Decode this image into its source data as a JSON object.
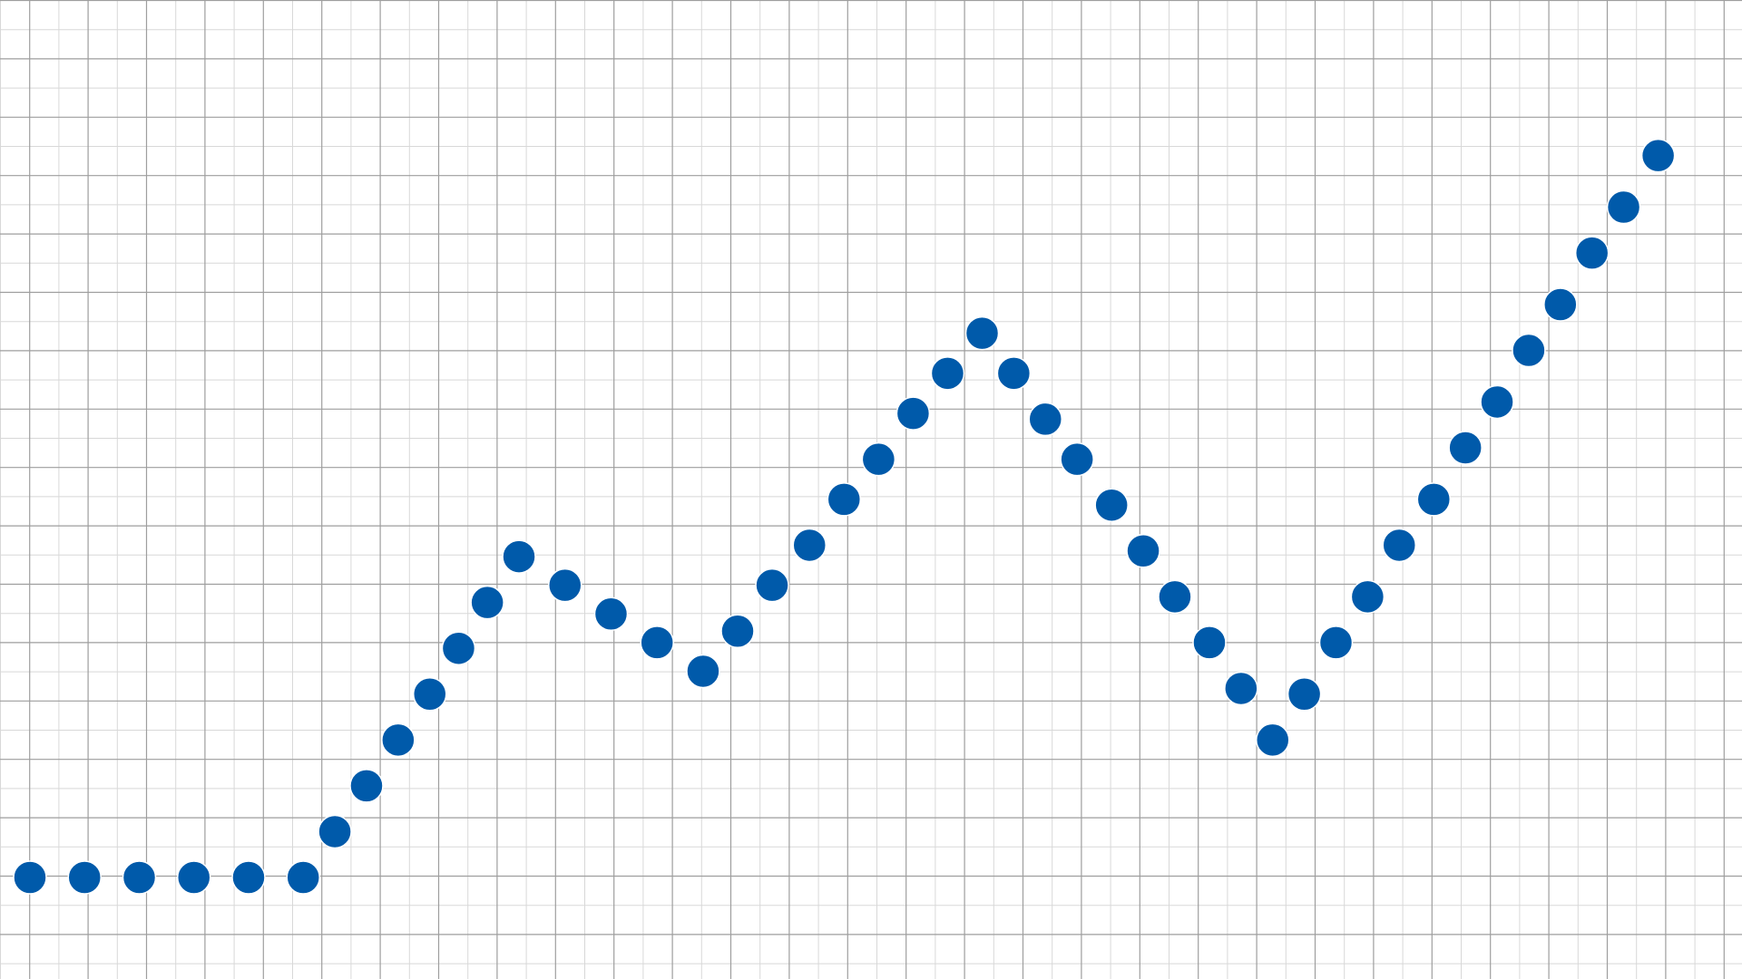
{
  "chart_data": {
    "type": "scatter",
    "title": "",
    "xlabel": "",
    "ylabel": "",
    "grid": true,
    "legend": "none",
    "xlim": [
      0,
      58
    ],
    "ylim": [
      0,
      15
    ],
    "x": [
      0,
      1.9,
      3.8,
      5.7,
      7.6,
      9.5,
      10.6,
      11.7,
      12.8,
      13.9,
      14.9,
      15.9,
      17.0,
      18.6,
      20.2,
      21.8,
      23.4,
      24.6,
      25.8,
      27.1,
      28.3,
      29.5,
      30.7,
      31.9,
      33.1,
      34.2,
      35.3,
      36.4,
      37.6,
      38.7,
      39.8,
      41.0,
      42.1,
      43.2,
      44.3,
      45.4,
      46.5,
      47.6,
      48.8,
      49.9,
      51.0,
      52.1,
      53.2,
      54.3,
      55.4,
      56.6
    ],
    "y": [
      0.0,
      0.0,
      0.0,
      0.0,
      0.0,
      0.0,
      0.8,
      1.6,
      2.4,
      3.2,
      4.0,
      4.8,
      5.6,
      5.1,
      4.6,
      4.1,
      3.6,
      4.3,
      5.1,
      5.8,
      6.6,
      7.3,
      8.1,
      8.8,
      9.5,
      8.8,
      8.0,
      7.3,
      6.5,
      5.7,
      4.9,
      4.1,
      3.3,
      2.4,
      3.2,
      4.1,
      4.9,
      5.8,
      6.6,
      7.5,
      8.3,
      9.2,
      10.0,
      10.9,
      11.7,
      12.6
    ]
  }
}
